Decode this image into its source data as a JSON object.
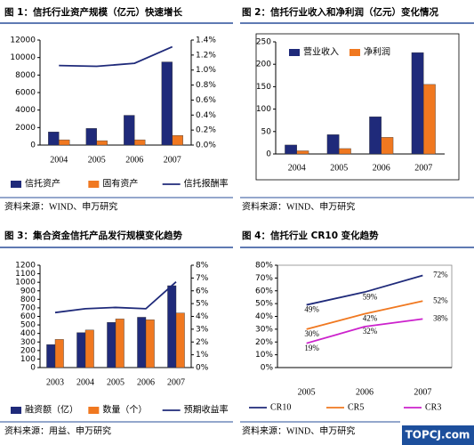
{
  "chart_data": [
    {
      "type": "bar",
      "title": "图 1：信托行业资产规模（亿元）快速增长",
      "categories": [
        "2004",
        "2005",
        "2006",
        "2007"
      ],
      "series": [
        {
          "name": "信托资产",
          "color": "#1f2a7a",
          "values": [
            1500,
            1900,
            3400,
            9500
          ]
        },
        {
          "name": "固有资产",
          "color": "#f07820",
          "values": [
            600,
            500,
            600,
            1100
          ]
        },
        {
          "name": "信托报酬率",
          "color": "#1f2a7a",
          "type": "line",
          "axis": "y2",
          "values": [
            1.06,
            1.05,
            1.09,
            1.31
          ]
        }
      ],
      "ylim": [
        0,
        12000
      ],
      "yticks": [
        0,
        2000,
        4000,
        6000,
        8000,
        10000,
        12000
      ],
      "y2lim": [
        0,
        1.4
      ],
      "y2ticks": [
        {
          "value": 0,
          "label": "0.0%"
        },
        {
          "value": 0.2,
          "label": "0.2%"
        },
        {
          "value": 0.4,
          "label": "0.4%"
        },
        {
          "value": 0.6,
          "label": "0.6%"
        },
        {
          "value": 0.8,
          "label": "0.8%"
        },
        {
          "value": 1.0,
          "label": "1.0%"
        },
        {
          "value": 1.2,
          "label": "1.2%"
        },
        {
          "value": 1.4,
          "label": "1.4%"
        }
      ],
      "legend": "bottom",
      "source": "资料来源：WIND、申万研究"
    },
    {
      "type": "bar",
      "title": "图 2：信托行业收入和净利润（亿元）变化情况",
      "categories": [
        "2004",
        "2005",
        "2006",
        "2007"
      ],
      "series": [
        {
          "name": "营业收入",
          "color": "#1f2a7a",
          "values": [
            20,
            43,
            83,
            226
          ]
        },
        {
          "name": "净利润",
          "color": "#f07820",
          "values": [
            7,
            12,
            37,
            155
          ]
        }
      ],
      "ylim": [
        0,
        250
      ],
      "yticks": [
        0,
        50,
        100,
        150,
        200,
        250
      ],
      "legend": "top-left",
      "source": "资料来源：WIND、申万研究"
    },
    {
      "type": "bar",
      "title": "图 3：集合资金信托产品发行规模变化趋势",
      "categories": [
        "2003",
        "2004",
        "2005",
        "2006",
        "2007"
      ],
      "series": [
        {
          "name": "融资额（亿）",
          "color": "#1f2a7a",
          "values": [
            270,
            410,
            530,
            590,
            960
          ]
        },
        {
          "name": "数量（个）",
          "color": "#f07820",
          "values": [
            330,
            440,
            570,
            560,
            640
          ]
        },
        {
          "name": "预期收益率",
          "color": "#1f2a7a",
          "type": "line",
          "axis": "y2",
          "values": [
            4.3,
            4.6,
            4.7,
            4.6,
            6.7
          ]
        }
      ],
      "ylim": [
        0,
        1200
      ],
      "yticks": [
        0,
        100,
        200,
        300,
        400,
        500,
        600,
        700,
        800,
        900,
        1000,
        1100,
        1200
      ],
      "y2lim": [
        0,
        8
      ],
      "y2ticks": [
        {
          "value": 0,
          "label": "0%"
        },
        {
          "value": 1,
          "label": "1%"
        },
        {
          "value": 2,
          "label": "2%"
        },
        {
          "value": 3,
          "label": "3%"
        },
        {
          "value": 4,
          "label": "4%"
        },
        {
          "value": 5,
          "label": "5%"
        },
        {
          "value": 6,
          "label": "6%"
        },
        {
          "value": 7,
          "label": "7%"
        },
        {
          "value": 8,
          "label": "8%"
        }
      ],
      "legend": "bottom",
      "source": "资料来源：用益、申万研究"
    },
    {
      "type": "line",
      "title": "图 4：信托行业 CR10 变化趋势",
      "categories": [
        "2005",
        "2006",
        "2007"
      ],
      "series": [
        {
          "name": "CR10",
          "color": "#1f2a7a",
          "values": [
            49,
            59,
            72
          ],
          "value_labels": [
            "49%",
            "59%",
            "72%"
          ]
        },
        {
          "name": "CR5",
          "color": "#f07820",
          "values": [
            30,
            42,
            52
          ],
          "value_labels": [
            "30%",
            "42%",
            "52%"
          ]
        },
        {
          "name": "CR3",
          "color": "#cc22cc",
          "values": [
            19,
            32,
            38
          ],
          "value_labels": [
            "19%",
            "32%",
            "38%"
          ]
        }
      ],
      "ylim": [
        0,
        80
      ],
      "yticks": [
        {
          "value": 0,
          "label": "0%"
        },
        {
          "value": 10,
          "label": "10%"
        },
        {
          "value": 20,
          "label": "20%"
        },
        {
          "value": 30,
          "label": "30%"
        },
        {
          "value": 40,
          "label": "40%"
        },
        {
          "value": 50,
          "label": "50%"
        },
        {
          "value": 60,
          "label": "60%"
        },
        {
          "value": 70,
          "label": "70%"
        },
        {
          "value": 80,
          "label": "80%"
        }
      ],
      "legend": "bottom",
      "source": "资料来源：WIND、申万研究"
    }
  ],
  "watermark": "TOPCJ.com"
}
